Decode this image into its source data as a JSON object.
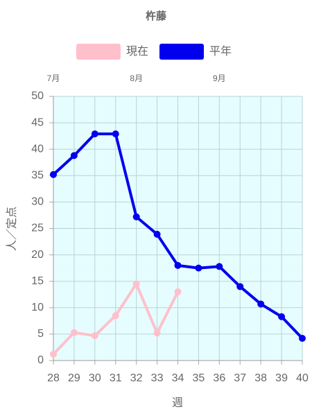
{
  "chart_data": {
    "type": "line",
    "title": "杵藤",
    "x_label": "週",
    "y_label": "人／定点",
    "x": [
      28,
      29,
      30,
      31,
      32,
      33,
      34,
      35,
      36,
      37,
      38,
      39,
      40
    ],
    "series": [
      {
        "name": "現在",
        "color": "#ffc0cb",
        "values": [
          1.2,
          5.3,
          4.7,
          8.5,
          14.5,
          5.2,
          13.0,
          null,
          null,
          null,
          null,
          null,
          null
        ]
      },
      {
        "name": "平年",
        "color": "#0000ee",
        "values": [
          35.2,
          38.8,
          42.9,
          42.9,
          27.2,
          23.9,
          18.0,
          17.5,
          17.8,
          14.0,
          10.7,
          8.3,
          4.2
        ]
      }
    ],
    "xlim": [
      28,
      40
    ],
    "xticks": [
      28,
      29,
      30,
      31,
      32,
      33,
      34,
      35,
      36,
      37,
      38,
      39,
      40
    ],
    "top_ticks": [
      {
        "value": 28,
        "label": "7月"
      },
      {
        "value": 32,
        "label": "8月"
      },
      {
        "value": 36,
        "label": "9月"
      }
    ],
    "ylim": [
      0,
      50
    ],
    "yticks": [
      0,
      5,
      10,
      15,
      20,
      25,
      30,
      35,
      40,
      45,
      50
    ],
    "grid": true,
    "background": "#e6fdff"
  }
}
